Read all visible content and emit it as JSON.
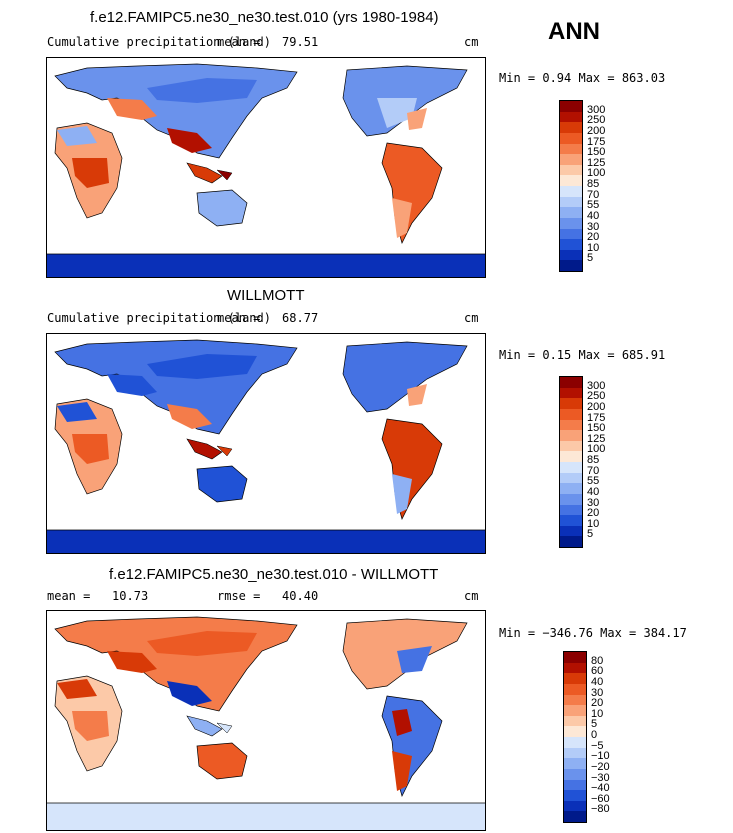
{
  "season": "ANN",
  "panels": [
    {
      "title": "f.e12.FAMIPC5.ne30_ne30.test.010 (yrs 1980-1984)",
      "left_label": "Cumulative precipitation (land)",
      "stat_label": "mean =",
      "stat_value": "79.51",
      "units": "cm",
      "min_max": "Min =   0.94 Max = 863.03",
      "colorbar_labels": [
        "300",
        "250",
        "200",
        "175",
        "150",
        "125",
        "100",
        "85",
        "70",
        "55",
        "40",
        "30",
        "20",
        "10",
        "5"
      ],
      "colorbar_colors": [
        "#8b0000",
        "#b21000",
        "#d83a07",
        "#ec5a24",
        "#f47c4a",
        "#f9a278",
        "#fcc9a8",
        "#fde8d6",
        "#d6e5fb",
        "#b3ccf8",
        "#8eb0f3",
        "#6a92ec",
        "#4572e3",
        "#2052d6",
        "#0a30b8",
        "#001a8a"
      ]
    },
    {
      "title": "WILLMOTT",
      "left_label": "Cumulative precipitation (land)",
      "stat_label": "mean =",
      "stat_value": "68.77",
      "units": "cm",
      "min_max": "Min =   0.15 Max = 685.91",
      "colorbar_labels": [
        "300",
        "250",
        "200",
        "175",
        "150",
        "125",
        "100",
        "85",
        "70",
        "55",
        "40",
        "30",
        "20",
        "10",
        "5"
      ],
      "colorbar_colors": [
        "#8b0000",
        "#b21000",
        "#d83a07",
        "#ec5a24",
        "#f47c4a",
        "#f9a278",
        "#fcc9a8",
        "#fde8d6",
        "#d6e5fb",
        "#b3ccf8",
        "#8eb0f3",
        "#6a92ec",
        "#4572e3",
        "#2052d6",
        "#0a30b8",
        "#001a8a"
      ]
    },
    {
      "title": "f.e12.FAMIPC5.ne30_ne30.test.010 - WILLMOTT",
      "left_label": "mean =",
      "left_value": "10.73",
      "stat_label": "rmse =",
      "stat_value": "40.40",
      "units": "cm",
      "min_max": "Min = −346.76 Max = 384.17",
      "colorbar_labels": [
        "80",
        "60",
        "40",
        "30",
        "20",
        "10",
        "5",
        "0",
        "−5",
        "−10",
        "−20",
        "−30",
        "−40",
        "−60",
        "−80"
      ],
      "colorbar_colors": [
        "#8b0000",
        "#b21000",
        "#d83a07",
        "#ec5a24",
        "#f47c4a",
        "#f9a278",
        "#fcc9a8",
        "#fde8d6",
        "#d6e5fb",
        "#b3ccf8",
        "#8eb0f3",
        "#6a92ec",
        "#4572e3",
        "#2052d6",
        "#0a30b8",
        "#001a8a"
      ]
    }
  ]
}
